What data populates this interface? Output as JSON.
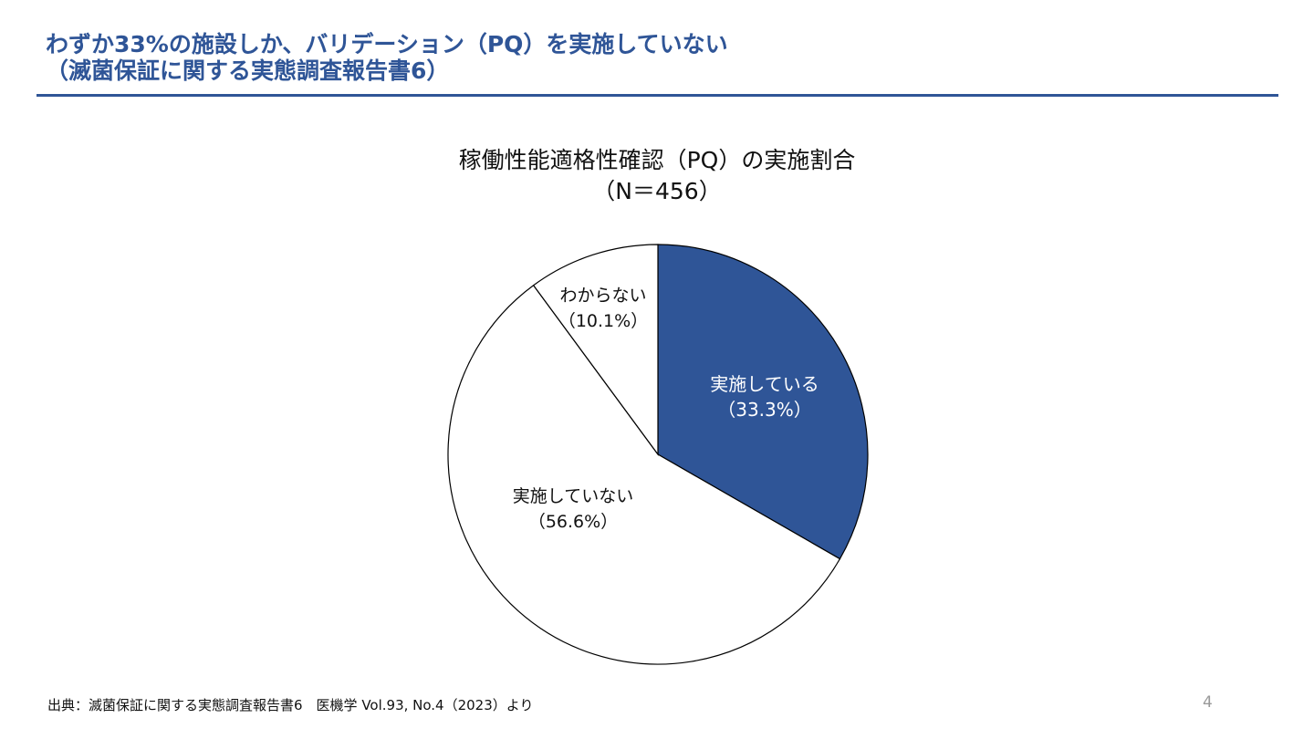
{
  "slide": {
    "title_line1": "わずか33%の施設しか、バリデーション（PQ）を実施していない",
    "title_line2": "（滅菌保証に関する実態調査報告書6）",
    "footer": "出典：滅菌保証に関する実態調査報告書6　医機学 Vol.93, No.4（2023）より",
    "page_number": "4"
  },
  "chart_data": {
    "type": "pie",
    "title": "稼働性能適格性確認（PQ）の実施割合",
    "subtitle": "（N＝456）",
    "start": "top",
    "direction": "clockwise",
    "slices": [
      {
        "label": "実施している",
        "pct_label": "（33.3%）",
        "value": 33.3,
        "color": "#2F5597",
        "text_color": "#ffffff"
      },
      {
        "label": "実施していない",
        "pct_label": "（56.6%）",
        "value": 56.6,
        "color": "#ffffff",
        "text_color": "#111111"
      },
      {
        "label": "わからない",
        "pct_label": "（10.1%）",
        "value": 10.1,
        "color": "#ffffff",
        "text_color": "#111111"
      }
    ]
  }
}
